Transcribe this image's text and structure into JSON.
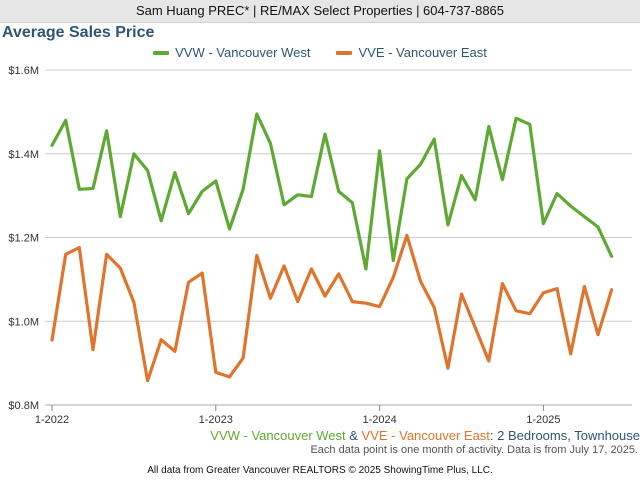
{
  "header": {
    "text": "Sam Huang PREC* | RE/MAX Select Properties | 604-737-8865"
  },
  "chart_data": {
    "type": "line",
    "title": "Average Sales Price",
    "xlabel": "",
    "ylabel": "",
    "x": [
      "2022-01",
      "2022-02",
      "2022-03",
      "2022-04",
      "2022-05",
      "2022-06",
      "2022-07",
      "2022-08",
      "2022-09",
      "2022-10",
      "2022-11",
      "2022-12",
      "2023-01",
      "2023-02",
      "2023-03",
      "2023-04",
      "2023-05",
      "2023-06",
      "2023-07",
      "2023-08",
      "2023-09",
      "2023-10",
      "2023-11",
      "2023-12",
      "2024-01",
      "2024-02",
      "2024-03",
      "2024-04",
      "2024-05",
      "2024-06",
      "2024-07",
      "2024-08",
      "2024-09",
      "2024-10",
      "2024-11",
      "2024-12",
      "2025-01",
      "2025-02",
      "2025-03",
      "2025-04",
      "2025-05",
      "2025-06"
    ],
    "xticks": [
      "1-2022",
      "1-2023",
      "1-2024",
      "1-2025"
    ],
    "xtick_positions": [
      "2022-01",
      "2023-01",
      "2024-01",
      "2025-01"
    ],
    "yticks": [
      "$0.8M",
      "$1.0M",
      "$1.2M",
      "$1.4M",
      "$1.6M"
    ],
    "ytick_values": [
      0.8,
      1.0,
      1.2,
      1.4,
      1.6
    ],
    "ylim": [
      0.8,
      1.6
    ],
    "units": "millions CAD",
    "grid": true,
    "legend_position": "top-center",
    "series": [
      {
        "name": "VVW - Vancouver West",
        "color": "#5ea933",
        "values": [
          1.42,
          1.48,
          1.315,
          1.317,
          1.455,
          1.25,
          1.4,
          1.36,
          1.24,
          1.355,
          1.257,
          1.31,
          1.335,
          1.22,
          1.315,
          1.495,
          1.425,
          1.278,
          1.302,
          1.298,
          1.447,
          1.31,
          1.283,
          1.125,
          1.407,
          1.145,
          1.34,
          1.375,
          1.435,
          1.23,
          1.348,
          1.29,
          1.465,
          1.338,
          1.485,
          1.47,
          1.233,
          1.305,
          1.275,
          1.25,
          1.225,
          1.155
        ]
      },
      {
        "name": "VVE - Vancouver East",
        "color": "#e0742c",
        "values": [
          0.955,
          1.16,
          1.176,
          0.932,
          1.16,
          1.127,
          1.045,
          0.858,
          0.956,
          0.928,
          1.093,
          1.115,
          0.878,
          0.867,
          0.912,
          1.157,
          1.055,
          1.132,
          1.047,
          1.125,
          1.06,
          1.113,
          1.047,
          1.043,
          1.035,
          1.105,
          1.205,
          1.095,
          1.033,
          0.888,
          1.065,
          0.985,
          0.905,
          1.09,
          1.025,
          1.018,
          1.068,
          1.078,
          0.922,
          1.083,
          0.968,
          1.075
        ]
      }
    ]
  },
  "subtitle": {
    "west": "VVW - Vancouver West",
    "amp": " & ",
    "east": "VVE - Vancouver East",
    "rest": ": 2 Bedrooms, Townhouse"
  },
  "note": "Each data point is one month of activity. Data is from July 17, 2025.",
  "footer": "All data from Greater Vancouver REALTORS © 2025 ShowingTime Plus, LLC."
}
